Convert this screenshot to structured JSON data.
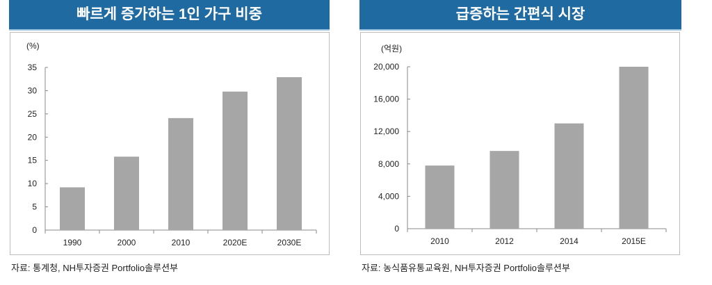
{
  "chart_data": [
    {
      "type": "bar",
      "title": "빠르게 증가하는 1인 가구 비중",
      "unit_label": "(%)",
      "categories": [
        "1990",
        "2000",
        "2010",
        "2020E",
        "2030E"
      ],
      "values": [
        9.2,
        15.8,
        24.1,
        29.8,
        32.9
      ],
      "ylim": [
        0,
        35
      ],
      "yticks": [
        0,
        5,
        10,
        15,
        20,
        25,
        30,
        35
      ],
      "ytick_labels": [
        "0",
        "5",
        "10",
        "15",
        "20",
        "25",
        "30",
        "35"
      ],
      "source": "자료: 통계청, NH투자증권  Portfolio솔루션부",
      "bar_color": "#a6a6a6"
    },
    {
      "type": "bar",
      "title": "급증하는 간편식 시장",
      "unit_label": "(억원)",
      "categories": [
        "2010",
        "2012",
        "2014",
        "2015E"
      ],
      "values": [
        7800,
        9600,
        13000,
        20000
      ],
      "ylim": [
        0,
        20000
      ],
      "yticks": [
        0,
        4000,
        8000,
        12000,
        16000,
        20000
      ],
      "ytick_labels": [
        "0",
        "4,000",
        "8,000",
        "12,000",
        "16,000",
        "20,000"
      ],
      "source": "자료: 농식품유통교육원,   NH투자증권  Portfolio솔루션부",
      "bar_color": "#a6a6a6"
    }
  ]
}
